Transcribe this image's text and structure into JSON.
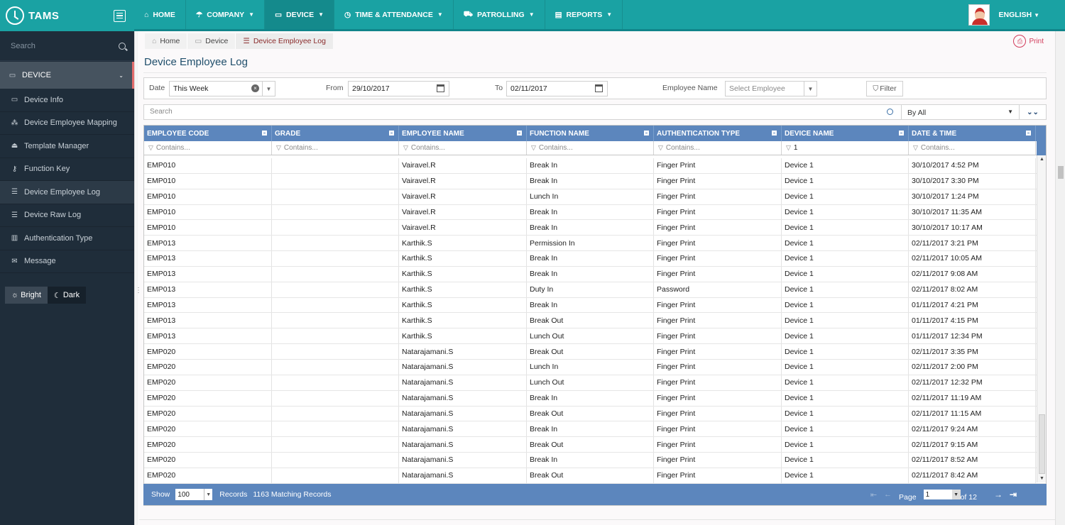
{
  "app": {
    "name": "TAMS"
  },
  "topnav": {
    "items": [
      {
        "label": "HOME",
        "icon": "home-icon"
      },
      {
        "label": "COMPANY",
        "icon": "umbrella-icon"
      },
      {
        "label": "DEVICE",
        "icon": "laptop-icon"
      },
      {
        "label": "TIME & ATTENDANCE",
        "icon": "clock-icon"
      },
      {
        "label": "PATROLLING",
        "icon": "car-icon"
      },
      {
        "label": "REPORTS",
        "icon": "file-icon"
      }
    ],
    "language": "ENGLISH"
  },
  "sidebar": {
    "search_placeholder": "Search",
    "section": "DEVICE",
    "items": [
      {
        "label": "Device Info",
        "icon": "laptop-icon"
      },
      {
        "label": "Device Employee Mapping",
        "icon": "sitemap-icon"
      },
      {
        "label": "Template Manager",
        "icon": "eject-icon"
      },
      {
        "label": "Function Key",
        "icon": "key-icon"
      },
      {
        "label": "Device Employee Log",
        "icon": "list-icon"
      },
      {
        "label": "Device Raw Log",
        "icon": "list-icon"
      },
      {
        "label": "Authentication Type",
        "icon": "barcode-icon"
      },
      {
        "label": "Message",
        "icon": "envelope-icon"
      }
    ],
    "theme": {
      "bright": "Bright",
      "dark": "Dark"
    }
  },
  "breadcrumb": {
    "home": "Home",
    "device": "Device",
    "current": "Device Employee Log"
  },
  "print_label": "Print",
  "page_title": "Device Employee Log",
  "filters": {
    "date_label": "Date",
    "date_value": "This Week",
    "from_label": "From",
    "from_value": "29/10/2017",
    "to_label": "To",
    "to_value": "02/11/2017",
    "employee_label": "Employee Name",
    "employee_placeholder": "Select Employee",
    "filter_button": "Filter"
  },
  "search": {
    "placeholder": "Search",
    "scope": "By All"
  },
  "grid": {
    "columns": [
      "EMPLOYEE CODE",
      "GRADE",
      "EMPLOYEE NAME",
      "FUNCTION NAME",
      "AUTHENTICATION TYPE",
      "DEVICE NAME",
      "DATE & TIME"
    ],
    "filter_placeholder": "Contains...",
    "device_filter_value": "1",
    "rows": [
      [
        "EMP010",
        "",
        "Vairavel.R",
        "Break In",
        "Finger Print",
        "Device 1",
        "30/10/2017 4:52 PM"
      ],
      [
        "EMP010",
        "",
        "Vairavel.R",
        "Break In",
        "Finger Print",
        "Device 1",
        "30/10/2017 3:30 PM"
      ],
      [
        "EMP010",
        "",
        "Vairavel.R",
        "Lunch In",
        "Finger Print",
        "Device 1",
        "30/10/2017 1:24 PM"
      ],
      [
        "EMP010",
        "",
        "Vairavel.R",
        "Break In",
        "Finger Print",
        "Device 1",
        "30/10/2017 11:35 AM"
      ],
      [
        "EMP010",
        "",
        "Vairavel.R",
        "Break In",
        "Finger Print",
        "Device 1",
        "30/10/2017 10:17 AM"
      ],
      [
        "EMP013",
        "",
        "Karthik.S",
        "Permission In",
        "Finger Print",
        "Device 1",
        "02/11/2017 3:21 PM"
      ],
      [
        "EMP013",
        "",
        "Karthik.S",
        "Break In",
        "Finger Print",
        "Device 1",
        "02/11/2017 10:05 AM"
      ],
      [
        "EMP013",
        "",
        "Karthik.S",
        "Break In",
        "Finger Print",
        "Device 1",
        "02/11/2017 9:08 AM"
      ],
      [
        "EMP013",
        "",
        "Karthik.S",
        "Duty In",
        "Password",
        "Device 1",
        "02/11/2017 8:02 AM"
      ],
      [
        "EMP013",
        "",
        "Karthik.S",
        "Break In",
        "Finger Print",
        "Device 1",
        "01/11/2017 4:21 PM"
      ],
      [
        "EMP013",
        "",
        "Karthik.S",
        "Break Out",
        "Finger Print",
        "Device 1",
        "01/11/2017 4:15 PM"
      ],
      [
        "EMP013",
        "",
        "Karthik.S",
        "Lunch Out",
        "Finger Print",
        "Device 1",
        "01/11/2017 12:34 PM"
      ],
      [
        "EMP020",
        "",
        "Natarajamani.S",
        "Break Out",
        "Finger Print",
        "Device 1",
        "02/11/2017 3:35 PM"
      ],
      [
        "EMP020",
        "",
        "Natarajamani.S",
        "Lunch In",
        "Finger Print",
        "Device 1",
        "02/11/2017 2:00 PM"
      ],
      [
        "EMP020",
        "",
        "Natarajamani.S",
        "Lunch Out",
        "Finger Print",
        "Device 1",
        "02/11/2017 12:32 PM"
      ],
      [
        "EMP020",
        "",
        "Natarajamani.S",
        "Break In",
        "Finger Print",
        "Device 1",
        "02/11/2017 11:19 AM"
      ],
      [
        "EMP020",
        "",
        "Natarajamani.S",
        "Break Out",
        "Finger Print",
        "Device 1",
        "02/11/2017 11:15 AM"
      ],
      [
        "EMP020",
        "",
        "Natarajamani.S",
        "Break In",
        "Finger Print",
        "Device 1",
        "02/11/2017 9:24 AM"
      ],
      [
        "EMP020",
        "",
        "Natarajamani.S",
        "Break Out",
        "Finger Print",
        "Device 1",
        "02/11/2017 9:15 AM"
      ],
      [
        "EMP020",
        "",
        "Natarajamani.S",
        "Break In",
        "Finger Print",
        "Device 1",
        "02/11/2017 8:52 AM"
      ],
      [
        "EMP020",
        "",
        "Natarajamani.S",
        "Break Out",
        "Finger Print",
        "Device 1",
        "02/11/2017 8:42 AM"
      ]
    ]
  },
  "footer": {
    "show_label": "Show",
    "page_size": "100",
    "records_label": "Records",
    "matching": "1163 Matching Records",
    "page_label": "Page",
    "page_value": "1",
    "of_label": "of 12"
  }
}
